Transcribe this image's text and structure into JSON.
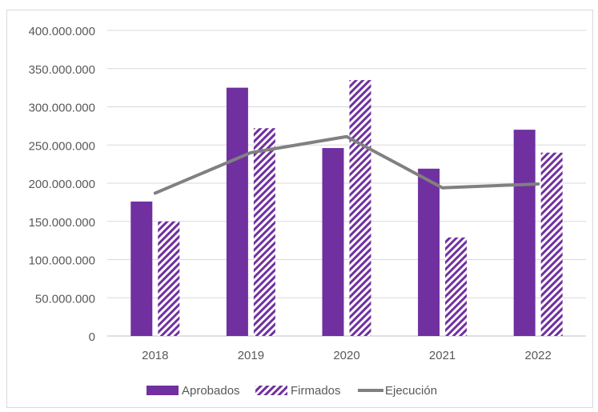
{
  "chart_data": {
    "type": "bar",
    "categories": [
      "2018",
      "2019",
      "2020",
      "2021",
      "2022"
    ],
    "series": [
      {
        "name": "Aprobados",
        "kind": "bar",
        "pattern": "solid",
        "color": "#7030A0",
        "values": [
          176000000,
          325000000,
          246000000,
          219000000,
          270000000
        ]
      },
      {
        "name": "Firmados",
        "kind": "bar",
        "pattern": "diagonal-hatch",
        "color": "#7030A0",
        "values": [
          150000000,
          272000000,
          335000000,
          129000000,
          240000000
        ]
      },
      {
        "name": "Ejecución",
        "kind": "line",
        "color": "#808080",
        "values": [
          187000000,
          240000000,
          261000000,
          194000000,
          199000000
        ]
      }
    ],
    "yticks": [
      "0",
      "50.000.000",
      "100.000.000",
      "150.000.000",
      "200.000.000",
      "250.000.000",
      "300.000.000",
      "350.000.000",
      "400.000.000"
    ],
    "ylim": [
      0,
      400000000
    ],
    "grid": true,
    "legend_position": "bottom",
    "title": "",
    "xlabel": "",
    "ylabel": ""
  }
}
